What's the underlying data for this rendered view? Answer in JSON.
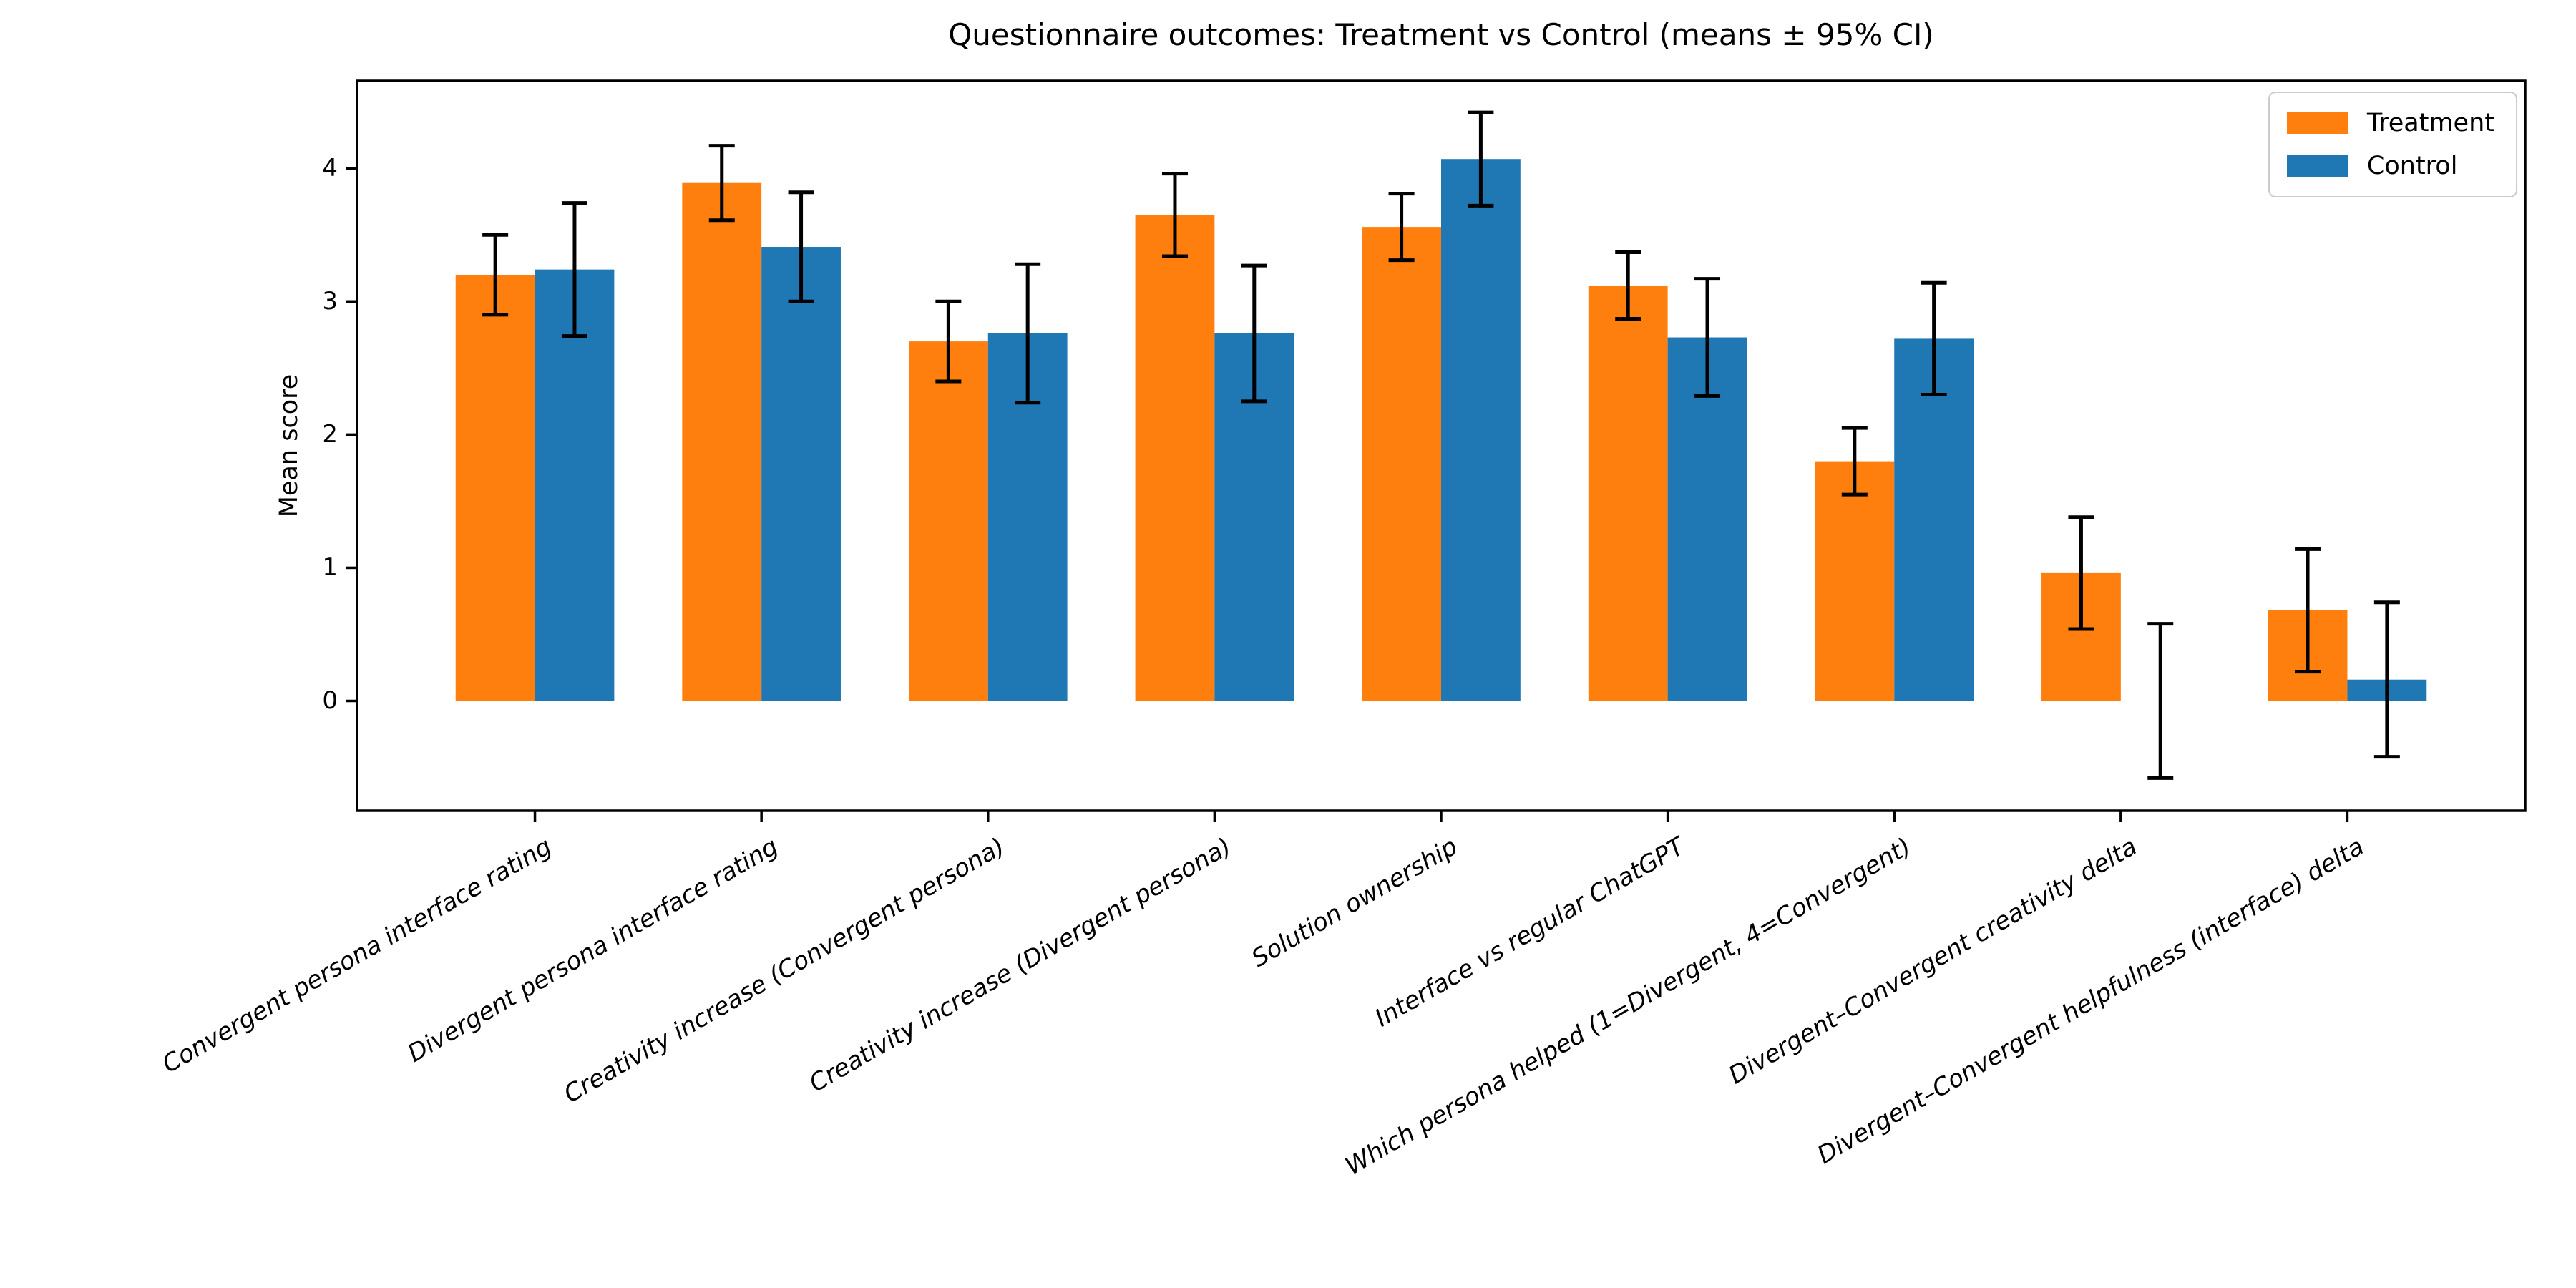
{
  "chart_data": {
    "type": "bar",
    "title": "Questionnaire outcomes: Treatment vs Control (means ± 95% CI)",
    "ylabel": "Mean score",
    "xlabel": "",
    "categories": [
      "Convergent persona interface rating",
      "Divergent persona interface rating",
      "Creativity increase (Convergent persona)",
      "Creativity increase (Divergent persona)",
      "Solution ownership",
      "Interface vs regular ChatGPT",
      "Which persona helped (1=Divergent, 4=Convergent)",
      "Divergent–Convergent creativity delta",
      "Divergent–Convergent helpfulness (interface) delta"
    ],
    "series": [
      {
        "name": "Treatment",
        "color": "#ff7f0e",
        "values": [
          3.2,
          3.89,
          2.7,
          3.65,
          3.56,
          3.12,
          1.8,
          0.96,
          0.68
        ],
        "ci95": [
          0.3,
          0.28,
          0.3,
          0.31,
          0.25,
          0.25,
          0.25,
          0.42,
          0.46
        ]
      },
      {
        "name": "Control",
        "color": "#1f77b4",
        "values": [
          3.24,
          3.41,
          2.76,
          2.76,
          4.07,
          2.73,
          2.72,
          0.0,
          0.16
        ],
        "ci95": [
          0.5,
          0.41,
          0.52,
          0.51,
          0.35,
          0.44,
          0.42,
          0.58,
          0.58
        ]
      }
    ],
    "yticks": [
      0,
      1,
      2,
      3,
      4
    ],
    "ylim": [
      -0.825,
      4.657
    ],
    "xlim": [
      -0.785,
      8.785
    ],
    "bar_width": 0.35,
    "error_bars": true,
    "grid": false,
    "legend_position": "upper right",
    "axis_color": "#000000",
    "background_color": "#ffffff"
  }
}
